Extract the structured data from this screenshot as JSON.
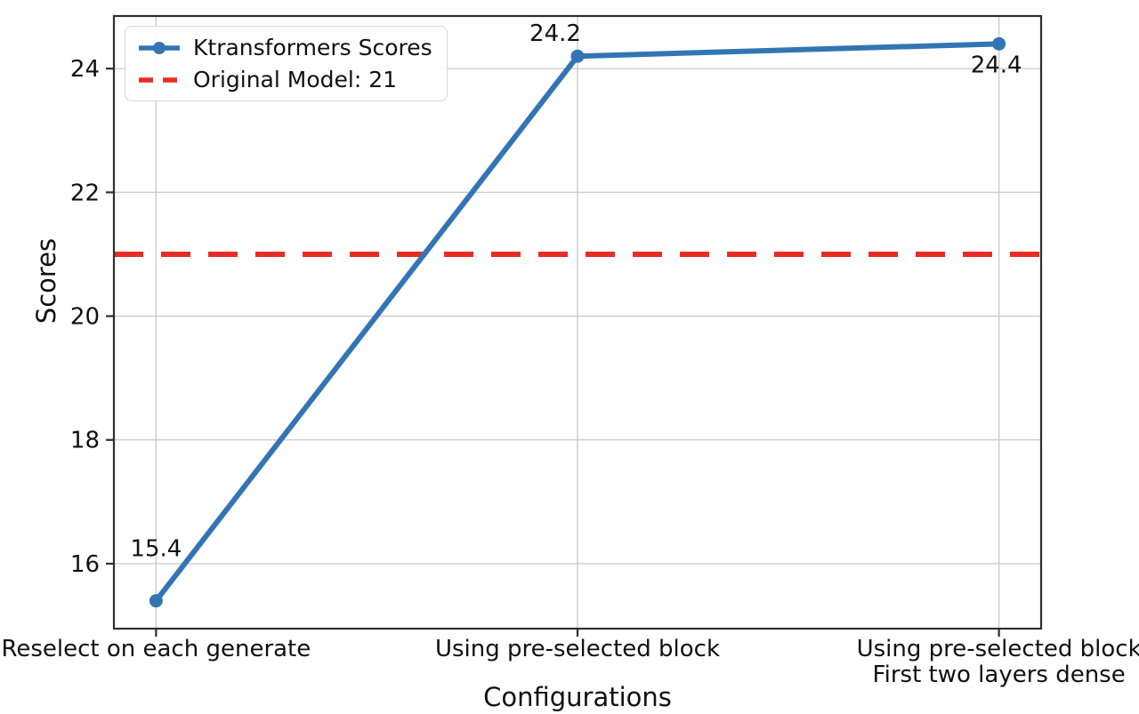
{
  "figure": {
    "background": "#ffffff"
  },
  "colors": {
    "series_line": "#3375b4",
    "reference_line": "#e82d26",
    "grid": "#cccccc",
    "spine": "#2e2e2e",
    "text": "#111111",
    "legend_border": "#d5d5d5"
  },
  "chart_data": {
    "type": "line",
    "title": "",
    "xlabel": "Configurations",
    "ylabel": "Scores",
    "categories": [
      "Reselect on each generate",
      "Using pre-selected block",
      "Using pre-selected block\nFirst two layers dense"
    ],
    "series": [
      {
        "name": "Ktransformers Scores",
        "values": [
          15.4,
          24.2,
          24.4
        ],
        "color": "#3375b4",
        "marker": "circle",
        "style": "solid"
      }
    ],
    "reference_line": {
      "name": "Original Model: 21",
      "value": 21,
      "color": "#e82d26",
      "style": "dashed"
    },
    "point_labels": [
      "15.4",
      "24.2",
      "24.4"
    ],
    "yticks": [
      16,
      18,
      20,
      22,
      24
    ],
    "ylim": [
      14.95,
      24.85
    ],
    "grid": true,
    "legend": {
      "position": "upper left",
      "entries": [
        "Ktransformers Scores",
        "Original Model: 21"
      ]
    }
  }
}
